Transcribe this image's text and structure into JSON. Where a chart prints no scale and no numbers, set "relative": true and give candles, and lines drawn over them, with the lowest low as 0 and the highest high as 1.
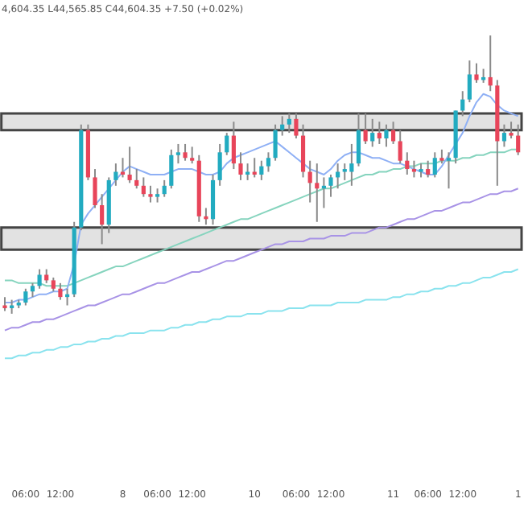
{
  "chart_data": {
    "type": "candlestick",
    "relative": true,
    "annotations": [
      "4,604.35 L44,565.85 C44,604.35 +7.50 (+0.02%)"
    ],
    "categories": [
      null,
      null,
      null,
      "06:00",
      null,
      null,
      null,
      null,
      "12:00",
      null,
      null,
      null,
      null,
      null,
      null,
      null,
      null,
      "8",
      null,
      null,
      null,
      null,
      "06:00",
      null,
      null,
      null,
      null,
      "12:00",
      null,
      null,
      null,
      null,
      null,
      null,
      null,
      null,
      "10",
      null,
      null,
      null,
      null,
      null,
      "06:00",
      null,
      null,
      null,
      null,
      "12:00",
      null,
      null,
      null,
      null,
      null,
      null,
      null,
      null,
      "11",
      null,
      null,
      null,
      null,
      "06:00",
      null,
      null,
      null,
      null,
      "12:00",
      null,
      null,
      null,
      null,
      null,
      null,
      null,
      "1"
    ],
    "ohlc": [
      [
        0.03,
        0.06,
        0.01,
        0.02
      ],
      [
        0.02,
        0.05,
        0,
        0.03
      ],
      [
        0.03,
        0.05,
        0.02,
        0.04
      ],
      [
        0.04,
        0.09,
        0.03,
        0.08
      ],
      [
        0.08,
        0.11,
        0.06,
        0.1
      ],
      [
        0.1,
        0.16,
        0.09,
        0.14
      ],
      [
        0.14,
        0.16,
        0.11,
        0.12
      ],
      [
        0.12,
        0.13,
        0.08,
        0.09
      ],
      [
        0.09,
        0.11,
        0.05,
        0.06
      ],
      [
        0.06,
        0.09,
        0.03,
        0.07
      ],
      [
        0.07,
        0.33,
        0.06,
        0.31
      ],
      [
        0.31,
        0.68,
        0.3,
        0.66
      ],
      [
        0.66,
        0.68,
        0.48,
        0.49
      ],
      [
        0.49,
        0.52,
        0.38,
        0.39
      ],
      [
        0.39,
        0.43,
        0.25,
        0.32
      ],
      [
        0.32,
        0.49,
        0.29,
        0.48
      ],
      [
        0.48,
        0.54,
        0.46,
        0.51
      ],
      [
        0.51,
        0.56,
        0.49,
        0.5
      ],
      [
        0.5,
        0.6,
        0.47,
        0.48
      ],
      [
        0.48,
        0.52,
        0.45,
        0.46
      ],
      [
        0.46,
        0.49,
        0.42,
        0.43
      ],
      [
        0.43,
        0.46,
        0.4,
        0.42
      ],
      [
        0.42,
        0.45,
        0.4,
        0.43
      ],
      [
        0.43,
        0.48,
        0.42,
        0.46
      ],
      [
        0.46,
        0.59,
        0.45,
        0.57
      ],
      [
        0.57,
        0.61,
        0.54,
        0.58
      ],
      [
        0.58,
        0.61,
        0.55,
        0.56
      ],
      [
        0.56,
        0.6,
        0.54,
        0.55
      ],
      [
        0.55,
        0.57,
        0.33,
        0.35
      ],
      [
        0.35,
        0.38,
        0.32,
        0.34
      ],
      [
        0.34,
        0.5,
        0.32,
        0.48
      ],
      [
        0.48,
        0.61,
        0.46,
        0.58
      ],
      [
        0.58,
        0.65,
        0.57,
        0.64
      ],
      [
        0.64,
        0.69,
        0.52,
        0.54
      ],
      [
        0.54,
        0.58,
        0.48,
        0.5
      ],
      [
        0.5,
        0.54,
        0.48,
        0.51
      ],
      [
        0.51,
        0.56,
        0.49,
        0.5
      ],
      [
        0.5,
        0.55,
        0.48,
        0.53
      ],
      [
        0.53,
        0.58,
        0.51,
        0.56
      ],
      [
        0.56,
        0.68,
        0.55,
        0.66
      ],
      [
        0.66,
        0.71,
        0.64,
        0.68
      ],
      [
        0.68,
        0.72,
        0.65,
        0.7
      ],
      [
        0.7,
        0.72,
        0.63,
        0.64
      ],
      [
        0.64,
        0.68,
        0.49,
        0.51
      ],
      [
        0.51,
        0.55,
        0.4,
        0.47
      ],
      [
        0.47,
        0.54,
        0.33,
        0.45
      ],
      [
        0.45,
        0.49,
        0.38,
        0.46
      ],
      [
        0.46,
        0.5,
        0.42,
        0.49
      ],
      [
        0.49,
        0.54,
        0.45,
        0.51
      ],
      [
        0.51,
        0.54,
        0.48,
        0.52
      ],
      [
        0.51,
        0.61,
        0.46,
        0.54
      ],
      [
        0.54,
        0.72,
        0.53,
        0.66
      ],
      [
        0.66,
        0.72,
        0.61,
        0.62
      ],
      [
        0.62,
        0.7,
        0.6,
        0.65
      ],
      [
        0.65,
        0.69,
        0.61,
        0.63
      ],
      [
        0.63,
        0.68,
        0.6,
        0.66
      ],
      [
        0.66,
        0.69,
        0.61,
        0.62
      ],
      [
        0.62,
        0.66,
        0.54,
        0.55
      ],
      [
        0.55,
        0.58,
        0.5,
        0.52
      ],
      [
        0.52,
        0.55,
        0.49,
        0.51
      ],
      [
        0.51,
        0.54,
        0.49,
        0.52
      ],
      [
        0.52,
        0.55,
        0.49,
        0.5
      ],
      [
        0.5,
        0.58,
        0.49,
        0.56
      ],
      [
        0.56,
        0.59,
        0.54,
        0.55
      ],
      [
        0.55,
        0.58,
        0.45,
        0.56
      ],
      [
        0.56,
        0.73,
        0.54,
        0.73
      ],
      [
        0.73,
        0.8,
        0.71,
        0.77
      ],
      [
        0.77,
        0.91,
        0.76,
        0.86
      ],
      [
        0.86,
        0.9,
        0.83,
        0.84
      ],
      [
        0.84,
        0.88,
        0.83,
        0.85
      ],
      [
        0.85,
        1,
        0.8,
        0.82
      ],
      [
        0.82,
        0.84,
        0.46,
        0.62
      ],
      [
        0.62,
        0.68,
        0.6,
        0.65
      ],
      [
        0.65,
        0.69,
        0.63,
        0.64
      ],
      [
        0.64,
        0.68,
        0.57,
        0.58
      ]
    ],
    "colors": [
      "#e8455a",
      "#22abc0",
      "#22abc0",
      "#22abc0",
      "#22abc0",
      "#22abc0",
      "#e8455a",
      "#e8455a",
      "#e8455a",
      "#22abc0",
      "#22abc0",
      "#22abc0",
      "#e8455a",
      "#e8455a",
      "#e8455a",
      "#22abc0",
      "#22abc0",
      "#e8455a",
      "#e8455a",
      "#e8455a",
      "#e8455a",
      "#e8455a",
      "#22abc0",
      "#22abc0",
      "#22abc0",
      "#22abc0",
      "#e8455a",
      "#e8455a",
      "#e8455a",
      "#e8455a",
      "#22abc0",
      "#22abc0",
      "#22abc0",
      "#e8455a",
      "#e8455a",
      "#22abc0",
      "#e8455a",
      "#22abc0",
      "#22abc0",
      "#22abc0",
      "#22abc0",
      "#22abc0",
      "#e8455a",
      "#e8455a",
      "#e8455a",
      "#e8455a",
      "#22abc0",
      "#22abc0",
      "#22abc0",
      "#22abc0",
      "#22abc0",
      "#22abc0",
      "#e8455a",
      "#22abc0",
      "#e8455a",
      "#22abc0",
      "#e8455a",
      "#e8455a",
      "#e8455a",
      "#e8455a",
      "#22abc0",
      "#e8455a",
      "#22abc0",
      "#e8455a",
      "#22abc0",
      "#22abc0",
      "#22abc0",
      "#22abc0",
      "#e8455a",
      "#22abc0",
      "#e8455a",
      "#e8455a",
      "#22abc0",
      "#e8455a",
      "#e8455a"
    ],
    "series": [
      {
        "type": "line",
        "color": "#8fb0f5",
        "values": [
          0.04,
          0.04,
          0.05,
          0.05,
          0.06,
          0.07,
          0.07,
          0.08,
          0.08,
          0.09,
          0.18,
          0.32,
          0.36,
          0.39,
          0.42,
          0.45,
          0.48,
          0.51,
          0.53,
          0.52,
          0.51,
          0.5,
          0.5,
          0.5,
          0.51,
          0.52,
          0.52,
          0.52,
          0.51,
          0.5,
          0.5,
          0.51,
          0.54,
          0.56,
          0.57,
          0.58,
          0.59,
          0.6,
          0.61,
          0.62,
          0.6,
          0.58,
          0.56,
          0.54,
          0.52,
          0.51,
          0.5,
          0.52,
          0.55,
          0.57,
          0.58,
          0.58,
          0.57,
          0.56,
          0.56,
          0.55,
          0.54,
          0.54,
          0.53,
          0.52,
          0.51,
          0.5,
          0.5,
          0.53,
          0.57,
          0.61,
          0.65,
          0.71,
          0.76,
          0.79,
          0.78,
          0.75,
          0.73,
          0.72,
          0.71
        ]
      },
      {
        "type": "line",
        "color": "#86d4be",
        "values": [
          0.12,
          0.12,
          0.11,
          0.11,
          0.11,
          0.11,
          0.1,
          0.1,
          0.1,
          0.1,
          0.11,
          0.12,
          0.13,
          0.14,
          0.15,
          0.16,
          0.17,
          0.17,
          0.18,
          0.19,
          0.2,
          0.21,
          0.22,
          0.23,
          0.24,
          0.25,
          0.26,
          0.27,
          0.28,
          0.29,
          0.3,
          0.31,
          0.32,
          0.33,
          0.34,
          0.34,
          0.35,
          0.36,
          0.37,
          0.38,
          0.39,
          0.4,
          0.41,
          0.42,
          0.43,
          0.44,
          0.45,
          0.45,
          0.46,
          0.47,
          0.48,
          0.49,
          0.5,
          0.5,
          0.51,
          0.51,
          0.52,
          0.52,
          0.53,
          0.53,
          0.54,
          0.54,
          0.54,
          0.55,
          0.55,
          0.55,
          0.56,
          0.56,
          0.57,
          0.57,
          0.58,
          0.58,
          0.58,
          0.59,
          0.59
        ]
      },
      {
        "type": "line",
        "color": "#a893e6",
        "values": [
          -0.06,
          -0.05,
          -0.05,
          -0.04,
          -0.03,
          -0.03,
          -0.02,
          -0.02,
          -0.01,
          0.0,
          0.01,
          0.02,
          0.03,
          0.03,
          0.04,
          0.05,
          0.06,
          0.07,
          0.07,
          0.08,
          0.09,
          0.1,
          0.11,
          0.11,
          0.12,
          0.13,
          0.14,
          0.15,
          0.15,
          0.16,
          0.17,
          0.18,
          0.19,
          0.19,
          0.2,
          0.21,
          0.22,
          0.23,
          0.24,
          0.25,
          0.25,
          0.26,
          0.26,
          0.26,
          0.27,
          0.27,
          0.27,
          0.28,
          0.28,
          0.28,
          0.29,
          0.29,
          0.29,
          0.3,
          0.31,
          0.31,
          0.32,
          0.33,
          0.34,
          0.34,
          0.35,
          0.36,
          0.37,
          0.37,
          0.38,
          0.39,
          0.4,
          0.4,
          0.41,
          0.42,
          0.43,
          0.43,
          0.44,
          0.44,
          0.45
        ]
      },
      {
        "type": "line",
        "color": "#8ae3ee",
        "values": [
          -0.16,
          -0.16,
          -0.15,
          -0.15,
          -0.14,
          -0.14,
          -0.13,
          -0.13,
          -0.12,
          -0.12,
          -0.11,
          -0.11,
          -0.1,
          -0.1,
          -0.09,
          -0.09,
          -0.08,
          -0.08,
          -0.07,
          -0.07,
          -0.07,
          -0.06,
          -0.06,
          -0.06,
          -0.05,
          -0.05,
          -0.04,
          -0.04,
          -0.03,
          -0.03,
          -0.02,
          -0.02,
          -0.01,
          -0.01,
          -0.01,
          0.0,
          0.0,
          0.0,
          0.01,
          0.01,
          0.01,
          0.02,
          0.02,
          0.02,
          0.03,
          0.03,
          0.03,
          0.03,
          0.04,
          0.04,
          0.04,
          0.04,
          0.05,
          0.05,
          0.05,
          0.05,
          0.06,
          0.06,
          0.07,
          0.07,
          0.08,
          0.08,
          0.09,
          0.09,
          0.1,
          0.1,
          0.11,
          0.11,
          0.12,
          0.13,
          0.13,
          0.14,
          0.15,
          0.15,
          0.16
        ]
      }
    ],
    "bands": [
      {
        "axis": "y",
        "from": 0.66,
        "to": 0.72,
        "color": "#e2e2e2"
      },
      {
        "axis": "y",
        "from": 0.23,
        "to": 0.31,
        "color": "#e2e2e2"
      }
    ]
  }
}
